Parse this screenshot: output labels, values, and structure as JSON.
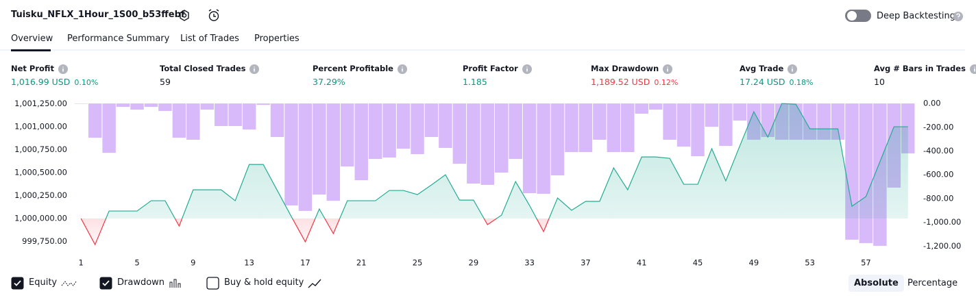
{
  "header": {
    "title": "Tuisku_NFLX_1Hour_1S00_b53ffebf",
    "toggle_label": "Deep Backtesting",
    "toggle_on": false
  },
  "tabs": [
    "Overview",
    "Performance Summary",
    "List of Trades",
    "Properties"
  ],
  "metrics": [
    {
      "label": "Net Profit",
      "value": "1,016.99 USD",
      "percent": "0.10%",
      "color": "#089981"
    },
    {
      "label": "Total Closed Trades",
      "value": "59",
      "color": "#131722"
    },
    {
      "label": "Percent Profitable",
      "value": "37.29%",
      "color": "#089981"
    },
    {
      "label": "Profit Factor",
      "value": "1.185",
      "color": "#089981"
    },
    {
      "label": "Max Drawdown",
      "value": "1,189.52 USD",
      "percent": "0.12%",
      "color": "#f23645"
    },
    {
      "label": "Avg Trade",
      "value": "17.24 USD",
      "percent": "0.18%",
      "color": "#089981"
    },
    {
      "label": "Avg # Bars in Trades",
      "value": "10",
      "color": "#131722"
    }
  ],
  "chart_data": {
    "type": "combo",
    "x": [
      1,
      2,
      3,
      4,
      5,
      6,
      7,
      8,
      9,
      10,
      11,
      12,
      13,
      14,
      15,
      16,
      17,
      18,
      19,
      20,
      21,
      22,
      23,
      24,
      25,
      26,
      27,
      28,
      29,
      30,
      31,
      32,
      33,
      34,
      35,
      36,
      37,
      38,
      39,
      40,
      41,
      42,
      43,
      44,
      45,
      46,
      47,
      48,
      49,
      50,
      51,
      52,
      53,
      54,
      55,
      56,
      57,
      58,
      59,
      60
    ],
    "xlim": [
      0.5,
      60.5
    ],
    "xticks": [
      1,
      5,
      9,
      13,
      17,
      21,
      25,
      29,
      33,
      37,
      41,
      45,
      49,
      53,
      57
    ],
    "ylim": [
      999657,
      1001299
    ],
    "yticks": [
      {
        "value": 1001250,
        "label": "1,001,250.00"
      },
      {
        "value": 1001000,
        "label": "1,001,000.00"
      },
      {
        "value": 1000750,
        "label": "1,000,750.00"
      },
      {
        "value": 1000500,
        "label": "1,000,500.00"
      },
      {
        "value": 1000250,
        "label": "1,000,250.00"
      },
      {
        "value": 1000000,
        "label": "1,000,000.00"
      },
      {
        "value": 999750,
        "label": "999,750.00"
      }
    ],
    "y2lim": [
      -1233,
      35
    ],
    "y2ticks": [
      {
        "value": 0,
        "label": "0.00"
      },
      {
        "value": -200,
        "label": "-200.00"
      },
      {
        "value": -400,
        "label": "-400.00"
      },
      {
        "value": -600,
        "label": "-600.00"
      },
      {
        "value": -800,
        "label": "-800.00"
      },
      {
        "value": -1000,
        "label": "-1,000.00"
      },
      {
        "value": -1200,
        "label": "-1,200.00"
      }
    ],
    "series": [
      {
        "name": "Equity",
        "type": "line",
        "color": "#22ab94",
        "negative_color": "#f23645",
        "visible": true,
        "values": [
          1000000,
          999716,
          1000082,
          1000082,
          1000082,
          1000194,
          1000194,
          999918,
          1000313,
          1000313,
          1000313,
          1000194,
          1000589,
          1000589,
          1000306,
          1000022,
          999746,
          1000104,
          999836,
          1000194,
          1000194,
          1000194,
          1000306,
          1000306,
          1000261,
          1000366,
          1000477,
          1000201,
          1000201,
          999933,
          1000037,
          1000403,
          1000142,
          999858,
          1000224,
          1000090,
          1000187,
          1000187,
          1000552,
          1000313,
          1000671,
          1000671,
          1000656,
          1000373,
          1000373,
          1000761,
          1000410,
          1000791,
          1001164,
          1000888,
          1001253,
          1001246,
          1000977,
          1000977,
          1000977,
          1000134,
          1000239,
          1000619,
          1001000,
          1001000
        ]
      },
      {
        "name": "Drawdown",
        "type": "bar",
        "axis": "y2",
        "color": "#c79bf7",
        "visible": true,
        "values": [
          0,
          -288,
          -415,
          -29,
          -52,
          -29,
          -63,
          -288,
          -305,
          -52,
          -190,
          -190,
          -219,
          -12,
          -282,
          -858,
          -904,
          -766,
          -818,
          -530,
          -645,
          -467,
          -455,
          -380,
          -426,
          -282,
          -374,
          -507,
          -674,
          -685,
          -582,
          -467,
          -755,
          -760,
          -605,
          -409,
          -409,
          -305,
          -409,
          -409,
          -86,
          -52,
          -305,
          -363,
          -444,
          -196,
          -357,
          -144,
          -305,
          -282,
          -305,
          -305,
          -305,
          -305,
          -305,
          -1146,
          -1175,
          -1198,
          -708,
          -420
        ]
      }
    ]
  },
  "legend_extra": {
    "label": "Buy & hold equity",
    "checked": false
  },
  "scale_buttons": [
    {
      "label": "Absolute",
      "active": true
    },
    {
      "label": "Percentage",
      "active": false
    }
  ]
}
